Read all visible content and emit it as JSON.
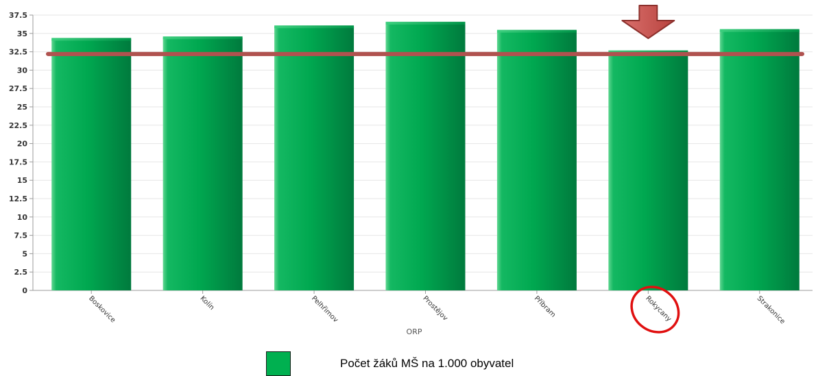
{
  "chart_data": {
    "type": "bar",
    "categories": [
      "Boskovice",
      "Kolín",
      "Pelhřimov",
      "Prostějov",
      "Příbram",
      "Rokycany",
      "Strakonice"
    ],
    "series": [
      {
        "name": "Počet žáků MŠ na 1.000 obyvatel",
        "values": [
          34.2,
          34.4,
          35.9,
          36.4,
          35.3,
          32.5,
          35.4
        ]
      }
    ],
    "xlabel": "ORP",
    "ylabel": "",
    "ylim": [
      0,
      37.5
    ],
    "yticks": [
      "0",
      "2.5",
      "5",
      "7.5",
      "10",
      "12.5",
      "15",
      "17.5",
      "20",
      "22.5",
      "25",
      "27.5",
      "30",
      "32.5",
      "35",
      "37.5"
    ],
    "reference_line": {
      "value": 32.2,
      "color": "#b0524f"
    },
    "highlight": {
      "category": "Rokycany",
      "arrow_color": "#c0504d",
      "circle_color": "#e01010"
    },
    "colors": {
      "bar_dark": "#008040",
      "bar_mid": "#00a850",
      "bar_light": "#28c878",
      "grid": "#e6e6e6"
    },
    "grid": true,
    "legend_position": "bottom"
  },
  "legend": {
    "label": "Počet žáků MŠ na 1.000 obyvatel",
    "icon": "legend-swatch"
  }
}
